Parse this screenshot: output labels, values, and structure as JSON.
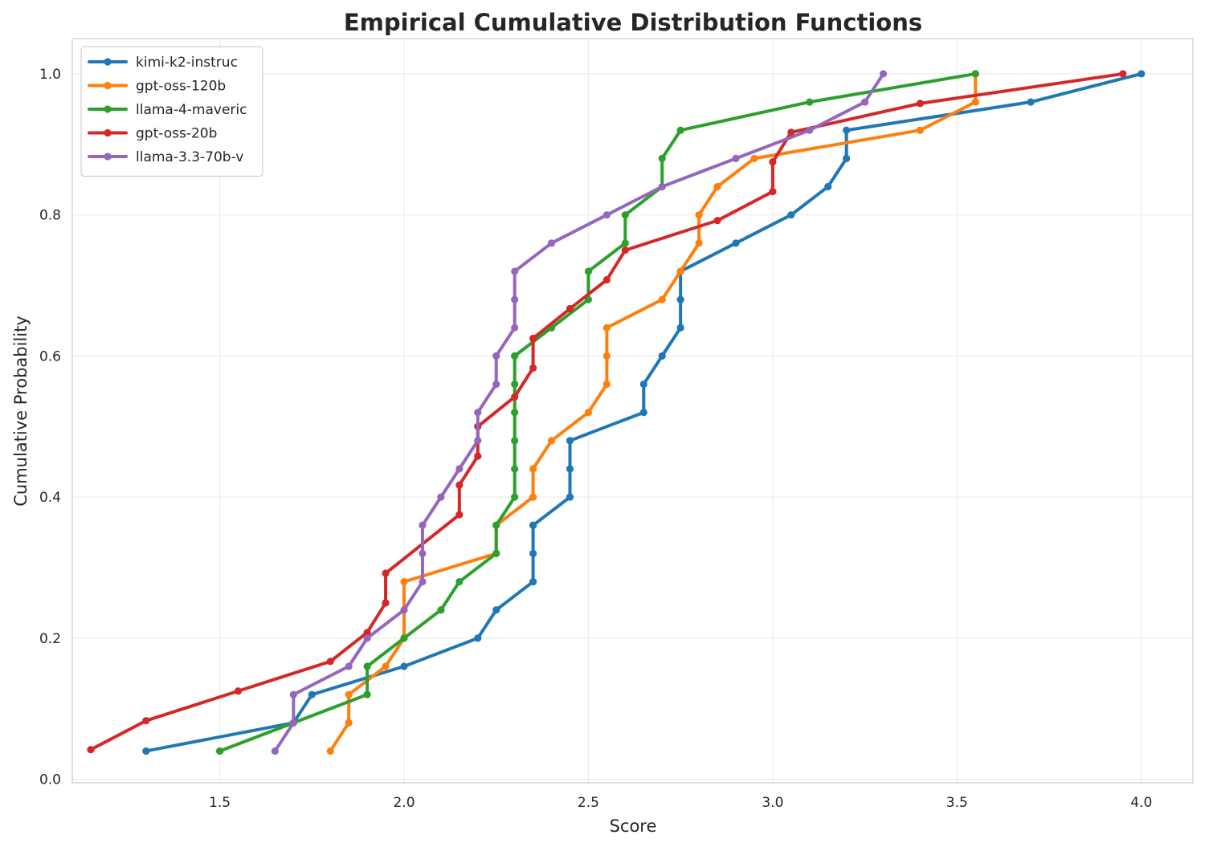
{
  "chart_data": {
    "type": "line",
    "title": "Empirical Cumulative Distribution Functions",
    "xlabel": "Score",
    "ylabel": "Cumulative Probability",
    "xlim": [
      1.1,
      4.14
    ],
    "ylim": [
      -0.005,
      1.05
    ],
    "xticks": [
      "1.5",
      "2.0",
      "2.5",
      "3.0",
      "3.5",
      "4.0"
    ],
    "xtick_values": [
      1.5,
      2.0,
      2.5,
      3.0,
      3.5,
      4.0
    ],
    "yticks": [
      "0.0",
      "0.2",
      "0.4",
      "0.6",
      "0.8",
      "1.0"
    ],
    "ytick_values": [
      0.0,
      0.2,
      0.4,
      0.6,
      0.8,
      1.0
    ],
    "grid": true,
    "legend_position": "top-left",
    "series": [
      {
        "name": "kimi-k2-instruc",
        "color": "#1f77b4",
        "x": [
          1.3,
          1.7,
          1.75,
          2.0,
          2.2,
          2.25,
          2.35,
          2.35,
          2.35,
          2.35,
          2.45,
          2.45,
          2.45,
          2.65,
          2.65,
          2.7,
          2.75,
          2.75,
          2.75,
          2.9,
          3.05,
          3.15,
          3.2,
          3.2,
          3.7,
          4.0
        ],
        "y": [
          0.04,
          0.08,
          0.12,
          0.16,
          0.2,
          0.24,
          0.28,
          0.32,
          0.36,
          0.36,
          0.4,
          0.44,
          0.48,
          0.52,
          0.56,
          0.6,
          0.64,
          0.68,
          0.72,
          0.76,
          0.8,
          0.84,
          0.88,
          0.92,
          0.96,
          1.0
        ]
      },
      {
        "name": "gpt-oss-120b",
        "color": "#ff7f0e",
        "x": [
          1.8,
          1.85,
          1.85,
          1.95,
          2.0,
          2.0,
          2.25,
          2.25,
          2.35,
          2.35,
          2.4,
          2.5,
          2.55,
          2.55,
          2.55,
          2.7,
          2.75,
          2.8,
          2.8,
          2.85,
          2.95,
          3.4,
          3.55,
          3.55
        ],
        "y": [
          0.04,
          0.08,
          0.12,
          0.16,
          0.2,
          0.28,
          0.32,
          0.36,
          0.4,
          0.44,
          0.48,
          0.52,
          0.56,
          0.6,
          0.64,
          0.68,
          0.72,
          0.76,
          0.8,
          0.84,
          0.88,
          0.92,
          0.96,
          1.0
        ]
      },
      {
        "name": "llama-4-maveric",
        "color": "#2ca02c",
        "x": [
          1.5,
          1.9,
          1.9,
          2.0,
          2.1,
          2.15,
          2.25,
          2.25,
          2.3,
          2.3,
          2.3,
          2.3,
          2.3,
          2.3,
          2.3,
          2.4,
          2.5,
          2.5,
          2.6,
          2.6,
          2.7,
          2.7,
          2.75,
          3.1,
          3.55
        ],
        "y": [
          0.04,
          0.12,
          0.16,
          0.2,
          0.24,
          0.28,
          0.32,
          0.36,
          0.4,
          0.44,
          0.48,
          0.52,
          0.56,
          0.6,
          0.6,
          0.64,
          0.68,
          0.72,
          0.76,
          0.8,
          0.84,
          0.88,
          0.92,
          0.96,
          1.0
        ]
      },
      {
        "name": "gpt-oss-20b",
        "color": "#d62728",
        "x": [
          1.15,
          1.3,
          1.55,
          1.8,
          1.9,
          1.95,
          1.95,
          2.15,
          2.15,
          2.2,
          2.2,
          2.3,
          2.35,
          2.35,
          2.45,
          2.55,
          2.6,
          2.85,
          3.0,
          3.0,
          3.05,
          3.4,
          3.95
        ],
        "y": [
          0.042,
          0.083,
          0.125,
          0.167,
          0.208,
          0.25,
          0.292,
          0.375,
          0.417,
          0.458,
          0.5,
          0.542,
          0.583,
          0.625,
          0.667,
          0.708,
          0.75,
          0.792,
          0.833,
          0.875,
          0.917,
          0.958,
          1.0
        ]
      },
      {
        "name": "llama-3.3-70b-v",
        "color": "#9467bd",
        "x": [
          1.65,
          1.7,
          1.7,
          1.85,
          1.9,
          2.0,
          2.05,
          2.05,
          2.05,
          2.1,
          2.15,
          2.2,
          2.2,
          2.25,
          2.25,
          2.3,
          2.3,
          2.3,
          2.4,
          2.55,
          2.7,
          2.9,
          3.1,
          3.25,
          3.3
        ],
        "y": [
          0.04,
          0.08,
          0.12,
          0.16,
          0.2,
          0.24,
          0.28,
          0.32,
          0.36,
          0.4,
          0.44,
          0.48,
          0.52,
          0.56,
          0.6,
          0.64,
          0.68,
          0.72,
          0.76,
          0.8,
          0.84,
          0.88,
          0.92,
          0.96,
          1.0
        ]
      }
    ]
  }
}
